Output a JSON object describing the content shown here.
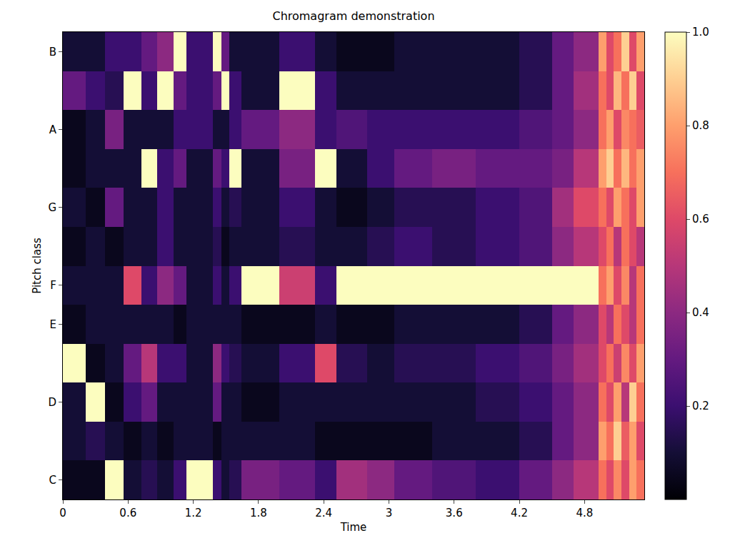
{
  "chart_data": {
    "type": "heatmap",
    "title": "Chromagram demonstration",
    "x_label": "Time",
    "y_label": "Pitch class",
    "x": [
      0,
      0.21,
      0.39,
      0.56,
      0.72,
      0.87,
      1.02,
      1.14,
      1.38,
      1.46,
      1.53,
      1.64,
      1.99,
      2.32,
      2.52,
      2.8,
      3.05,
      3.4,
      3.8,
      4.2,
      4.5,
      4.7,
      4.93,
      5.0,
      5.07,
      5.14,
      5.21,
      5.28,
      5.35
    ],
    "categories": [
      "C",
      null,
      "D",
      null,
      "E",
      "F",
      null,
      "G",
      null,
      "A",
      null,
      "B"
    ],
    "z": [
      [
        0.05,
        0.05,
        1,
        0.1,
        0.15,
        0.1,
        0.2,
        1,
        0.2,
        0.1,
        0.15,
        0.35,
        0.3,
        0.2,
        0.45,
        0.4,
        0.3,
        0.25,
        0.2,
        0.3,
        0.4,
        0.5,
        0.7,
        0.6,
        0.75,
        0.6,
        0.8,
        0.7
      ],
      [
        0.1,
        0.15,
        0.1,
        0.05,
        0.1,
        0.05,
        0.1,
        0.1,
        0.05,
        0.1,
        0.1,
        0.1,
        0.1,
        0.05,
        0.05,
        0.05,
        0.05,
        0.1,
        0.1,
        0.15,
        0.3,
        0.4,
        0.8,
        0.7,
        0.9,
        0.65,
        0.8,
        0.6
      ],
      [
        0.1,
        1,
        0.05,
        0.2,
        0.3,
        0.1,
        0.1,
        0.1,
        0.3,
        0.1,
        0.1,
        0.05,
        0.1,
        0.1,
        0.1,
        0.1,
        0.1,
        0.1,
        0.15,
        0.2,
        0.3,
        0.4,
        0.7,
        0.6,
        0.8,
        0.5,
        0.9,
        0.7
      ],
      [
        1,
        0.05,
        0.1,
        0.3,
        0.5,
        0.2,
        0.2,
        0.1,
        0.4,
        0.2,
        0.15,
        0.1,
        0.2,
        0.6,
        0.15,
        0.1,
        0.15,
        0.15,
        0.2,
        0.25,
        0.35,
        0.45,
        0.6,
        0.7,
        0.55,
        0.75,
        0.6,
        0.8
      ],
      [
        0.05,
        0.1,
        0.1,
        0.1,
        0.1,
        0.1,
        0.05,
        0.1,
        0.1,
        0.1,
        0.1,
        0.05,
        0.05,
        0.1,
        0.05,
        0.05,
        0.1,
        0.1,
        0.1,
        0.15,
        0.3,
        0.4,
        0.6,
        0.5,
        0.7,
        0.6,
        0.5,
        0.7
      ],
      [
        0.1,
        0.1,
        0.1,
        0.6,
        0.2,
        0.4,
        0.3,
        0.1,
        0.2,
        0.1,
        0.2,
        1,
        0.55,
        0.2,
        1,
        1,
        1,
        1,
        1,
        1,
        1,
        1,
        0.7,
        0.8,
        0.6,
        0.75,
        0.5,
        0.7
      ],
      [
        0.05,
        0.1,
        0.05,
        0.1,
        0.1,
        0.2,
        0.1,
        0.1,
        0.15,
        0.05,
        0.1,
        0.1,
        0.15,
        0.1,
        0.1,
        0.15,
        0.2,
        0.15,
        0.2,
        0.25,
        0.4,
        0.5,
        0.6,
        0.7,
        0.5,
        0.7,
        0.6,
        0.5
      ],
      [
        0.1,
        0.05,
        0.3,
        0.1,
        0.1,
        0.2,
        0.1,
        0.1,
        0.2,
        0.1,
        0.15,
        0.1,
        0.2,
        0.1,
        0.05,
        0.1,
        0.15,
        0.15,
        0.2,
        0.25,
        0.45,
        0.6,
        0.7,
        0.6,
        0.8,
        0.7,
        0.6,
        0.8
      ],
      [
        0.05,
        0.1,
        0.1,
        0.1,
        1,
        0.2,
        0.3,
        0.1,
        0.3,
        0.2,
        1,
        0.1,
        0.35,
        1,
        0.1,
        0.2,
        0.3,
        0.35,
        0.3,
        0.3,
        0.35,
        0.5,
        0.8,
        0.9,
        0.7,
        0.85,
        0.7,
        0.8
      ],
      [
        0.05,
        0.1,
        0.35,
        0.1,
        0.1,
        0.1,
        0.2,
        0.2,
        0.1,
        0.1,
        0.2,
        0.3,
        0.4,
        0.2,
        0.25,
        0.2,
        0.2,
        0.2,
        0.2,
        0.25,
        0.3,
        0.4,
        0.7,
        0.8,
        0.6,
        0.75,
        0.7,
        0.65
      ],
      [
        0.3,
        0.2,
        0.15,
        1,
        0.2,
        1,
        0.3,
        0.2,
        0.3,
        1,
        0.2,
        0.1,
        1,
        0.2,
        0.1,
        0.1,
        0.1,
        0.1,
        0.1,
        0.15,
        0.3,
        0.45,
        0.7,
        0.6,
        0.85,
        0.7,
        0.9,
        0.6
      ],
      [
        0.1,
        0.1,
        0.2,
        0.2,
        0.3,
        0.4,
        1,
        0.2,
        1,
        0.3,
        0.1,
        0.1,
        0.2,
        0.1,
        0.05,
        0.05,
        0.1,
        0.1,
        0.1,
        0.15,
        0.3,
        0.4,
        0.8,
        0.6,
        0.7,
        0.9,
        0.6,
        0.8
      ]
    ],
    "xlim": [
      0,
      5.35
    ],
    "xticks": [
      0,
      0.6,
      1.2,
      1.8,
      2.4,
      3,
      3.6,
      4.2,
      4.8
    ],
    "colorbar_range": [
      0,
      1
    ],
    "colorbar_ticks": [
      0.2,
      0.4,
      0.6,
      0.8,
      {
        "value": 1,
        "label": "1.0"
      }
    ],
    "grid": false
  }
}
